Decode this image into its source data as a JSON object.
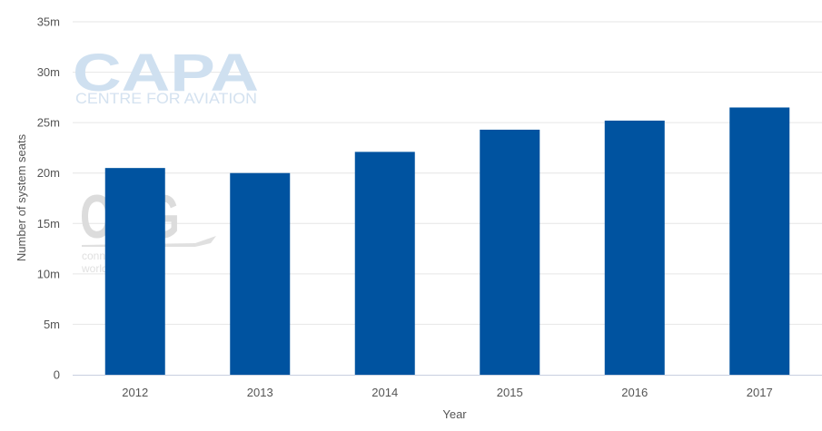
{
  "watermarks": {
    "capa_logo": "CAPA",
    "capa_subtitle": "CENTRE FOR AVIATION",
    "oag_logo": "OAG",
    "oag_line1": "connecting the",
    "oag_line2": "world of travel"
  },
  "chart_data": {
    "type": "bar",
    "categories": [
      "2012",
      "2013",
      "2014",
      "2015",
      "2016",
      "2017"
    ],
    "values": [
      20500000,
      20000000,
      22100000,
      24300000,
      25200000,
      26500000
    ],
    "xlabel": "Year",
    "ylabel": "Number of system seats",
    "ylim": [
      0,
      35000000
    ],
    "yticks": [
      0,
      5000000,
      10000000,
      15000000,
      20000000,
      25000000,
      30000000,
      35000000
    ],
    "ytick_labels": [
      "0",
      "5m",
      "10m",
      "15m",
      "20m",
      "25m",
      "30m",
      "35m"
    ],
    "bar_color": "#0053a0",
    "grid": true,
    "legend": "none"
  }
}
